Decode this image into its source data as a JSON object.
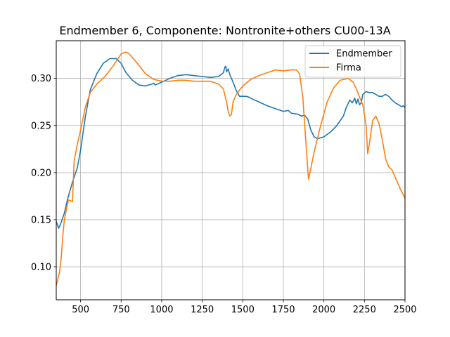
{
  "chart_data": {
    "type": "line",
    "title": "Endmember 6, Componente: Nontronite+others CU00-13A",
    "xlabel": "",
    "ylabel": "",
    "xlim": [
      350,
      2500
    ],
    "ylim": [
      0.065,
      0.34
    ],
    "xticks": [
      500,
      750,
      1000,
      1250,
      1500,
      1750,
      2000,
      2250,
      2500
    ],
    "yticks": [
      0.1,
      0.15,
      0.2,
      0.25,
      0.3
    ],
    "xtick_labels": [
      "500",
      "750",
      "1000",
      "1250",
      "1500",
      "1750",
      "2000",
      "2250",
      "2500"
    ],
    "ytick_labels": [
      "0.10",
      "0.15",
      "0.20",
      "0.25",
      "0.30"
    ],
    "grid": true,
    "legend_position": "top-right",
    "series": [
      {
        "name": "Endmember",
        "color": "#1f77b4",
        "points": [
          [
            350,
            0.148
          ],
          [
            365,
            0.141
          ],
          [
            380,
            0.147
          ],
          [
            400,
            0.157
          ],
          [
            420,
            0.172
          ],
          [
            450,
            0.19
          ],
          [
            480,
            0.205
          ],
          [
            500,
            0.224
          ],
          [
            530,
            0.26
          ],
          [
            560,
            0.288
          ],
          [
            600,
            0.305
          ],
          [
            640,
            0.316
          ],
          [
            680,
            0.321
          ],
          [
            720,
            0.321
          ],
          [
            750,
            0.316
          ],
          [
            780,
            0.306
          ],
          [
            820,
            0.298
          ],
          [
            860,
            0.293
          ],
          [
            900,
            0.292
          ],
          [
            940,
            0.294
          ],
          [
            950,
            0.295
          ],
          [
            960,
            0.293
          ],
          [
            1000,
            0.296
          ],
          [
            1050,
            0.3
          ],
          [
            1100,
            0.303
          ],
          [
            1150,
            0.304
          ],
          [
            1200,
            0.303
          ],
          [
            1250,
            0.302
          ],
          [
            1300,
            0.301
          ],
          [
            1350,
            0.302
          ],
          [
            1380,
            0.306
          ],
          [
            1390,
            0.312
          ],
          [
            1395,
            0.313
          ],
          [
            1400,
            0.307
          ],
          [
            1410,
            0.31
          ],
          [
            1420,
            0.304
          ],
          [
            1440,
            0.296
          ],
          [
            1460,
            0.287
          ],
          [
            1480,
            0.281
          ],
          [
            1500,
            0.281
          ],
          [
            1520,
            0.281
          ],
          [
            1540,
            0.28
          ],
          [
            1560,
            0.278
          ],
          [
            1600,
            0.275
          ],
          [
            1650,
            0.271
          ],
          [
            1700,
            0.268
          ],
          [
            1750,
            0.265
          ],
          [
            1780,
            0.266
          ],
          [
            1800,
            0.263
          ],
          [
            1840,
            0.262
          ],
          [
            1860,
            0.26
          ],
          [
            1880,
            0.261
          ],
          [
            1900,
            0.257
          ],
          [
            1920,
            0.245
          ],
          [
            1940,
            0.238
          ],
          [
            1960,
            0.236
          ],
          [
            1980,
            0.237
          ],
          [
            2000,
            0.238
          ],
          [
            2040,
            0.243
          ],
          [
            2080,
            0.25
          ],
          [
            2120,
            0.26
          ],
          [
            2140,
            0.27
          ],
          [
            2160,
            0.277
          ],
          [
            2175,
            0.274
          ],
          [
            2190,
            0.279
          ],
          [
            2200,
            0.273
          ],
          [
            2210,
            0.278
          ],
          [
            2220,
            0.272
          ],
          [
            2230,
            0.274
          ],
          [
            2240,
            0.283
          ],
          [
            2260,
            0.286
          ],
          [
            2280,
            0.285
          ],
          [
            2300,
            0.285
          ],
          [
            2320,
            0.283
          ],
          [
            2340,
            0.281
          ],
          [
            2360,
            0.281
          ],
          [
            2380,
            0.283
          ],
          [
            2400,
            0.281
          ],
          [
            2420,
            0.277
          ],
          [
            2440,
            0.274
          ],
          [
            2460,
            0.272
          ],
          [
            2480,
            0.27
          ],
          [
            2490,
            0.271
          ],
          [
            2500,
            0.269
          ]
        ]
      },
      {
        "name": "Firma",
        "color": "#ff7f0e",
        "points": [
          [
            350,
            0.08
          ],
          [
            360,
            0.087
          ],
          [
            370,
            0.094
          ],
          [
            380,
            0.108
          ],
          [
            390,
            0.132
          ],
          [
            400,
            0.15
          ],
          [
            415,
            0.163
          ],
          [
            425,
            0.171
          ],
          [
            440,
            0.17
          ],
          [
            450,
            0.169
          ],
          [
            460,
            0.212
          ],
          [
            480,
            0.23
          ],
          [
            500,
            0.245
          ],
          [
            530,
            0.27
          ],
          [
            560,
            0.285
          ],
          [
            600,
            0.294
          ],
          [
            650,
            0.302
          ],
          [
            700,
            0.313
          ],
          [
            750,
            0.326
          ],
          [
            780,
            0.328
          ],
          [
            800,
            0.326
          ],
          [
            850,
            0.316
          ],
          [
            900,
            0.305
          ],
          [
            950,
            0.299
          ],
          [
            1000,
            0.297
          ],
          [
            1050,
            0.297
          ],
          [
            1100,
            0.298
          ],
          [
            1150,
            0.298
          ],
          [
            1200,
            0.297
          ],
          [
            1300,
            0.297
          ],
          [
            1350,
            0.294
          ],
          [
            1380,
            0.289
          ],
          [
            1400,
            0.275
          ],
          [
            1410,
            0.265
          ],
          [
            1420,
            0.26
          ],
          [
            1430,
            0.262
          ],
          [
            1440,
            0.275
          ],
          [
            1460,
            0.283
          ],
          [
            1500,
            0.292
          ],
          [
            1550,
            0.299
          ],
          [
            1600,
            0.303
          ],
          [
            1650,
            0.306
          ],
          [
            1700,
            0.309
          ],
          [
            1750,
            0.308
          ],
          [
            1800,
            0.309
          ],
          [
            1830,
            0.309
          ],
          [
            1850,
            0.305
          ],
          [
            1870,
            0.28
          ],
          [
            1890,
            0.23
          ],
          [
            1905,
            0.193
          ],
          [
            1920,
            0.205
          ],
          [
            1940,
            0.222
          ],
          [
            1980,
            0.25
          ],
          [
            2020,
            0.275
          ],
          [
            2060,
            0.29
          ],
          [
            2100,
            0.298
          ],
          [
            2150,
            0.3
          ],
          [
            2180,
            0.296
          ],
          [
            2200,
            0.289
          ],
          [
            2220,
            0.28
          ],
          [
            2240,
            0.272
          ],
          [
            2260,
            0.25
          ],
          [
            2270,
            0.22
          ],
          [
            2280,
            0.23
          ],
          [
            2300,
            0.255
          ],
          [
            2320,
            0.26
          ],
          [
            2340,
            0.252
          ],
          [
            2360,
            0.235
          ],
          [
            2380,
            0.215
          ],
          [
            2400,
            0.206
          ],
          [
            2420,
            0.203
          ],
          [
            2440,
            0.195
          ],
          [
            2470,
            0.183
          ],
          [
            2500,
            0.173
          ]
        ]
      }
    ]
  }
}
